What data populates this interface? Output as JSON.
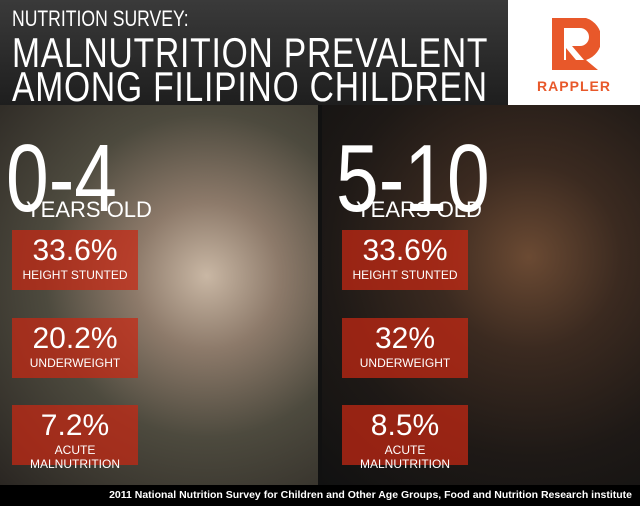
{
  "header": {
    "kicker": "NUTRITION SURVEY:",
    "title_lines": [
      "MALNUTRITION PREVALENT",
      "AMONG FILIPINO CHILDREN"
    ]
  },
  "logo": {
    "name": "RAPPLER"
  },
  "groups": [
    {
      "age": "0-4",
      "unit": "YEARS OLD",
      "stats": [
        {
          "value": "33.6%",
          "label": "HEIGHT STUNTED"
        },
        {
          "value": "20.2%",
          "label": "UNDERWEIGHT"
        },
        {
          "value": "7.2%",
          "label": "ACUTE MALNUTRITION"
        }
      ]
    },
    {
      "age": "5-10",
      "unit": "YEARS OLD",
      "stats": [
        {
          "value": "33.6%",
          "label": "HEIGHT STUNTED"
        },
        {
          "value": "32%",
          "label": "UNDERWEIGHT"
        },
        {
          "value": "8.5%",
          "label": "ACUTE MALNUTRITION"
        }
      ]
    }
  ],
  "source": "2011 National Nutrition Survey for Children and Other Age Groups, Food and Nutrition Research institute"
}
